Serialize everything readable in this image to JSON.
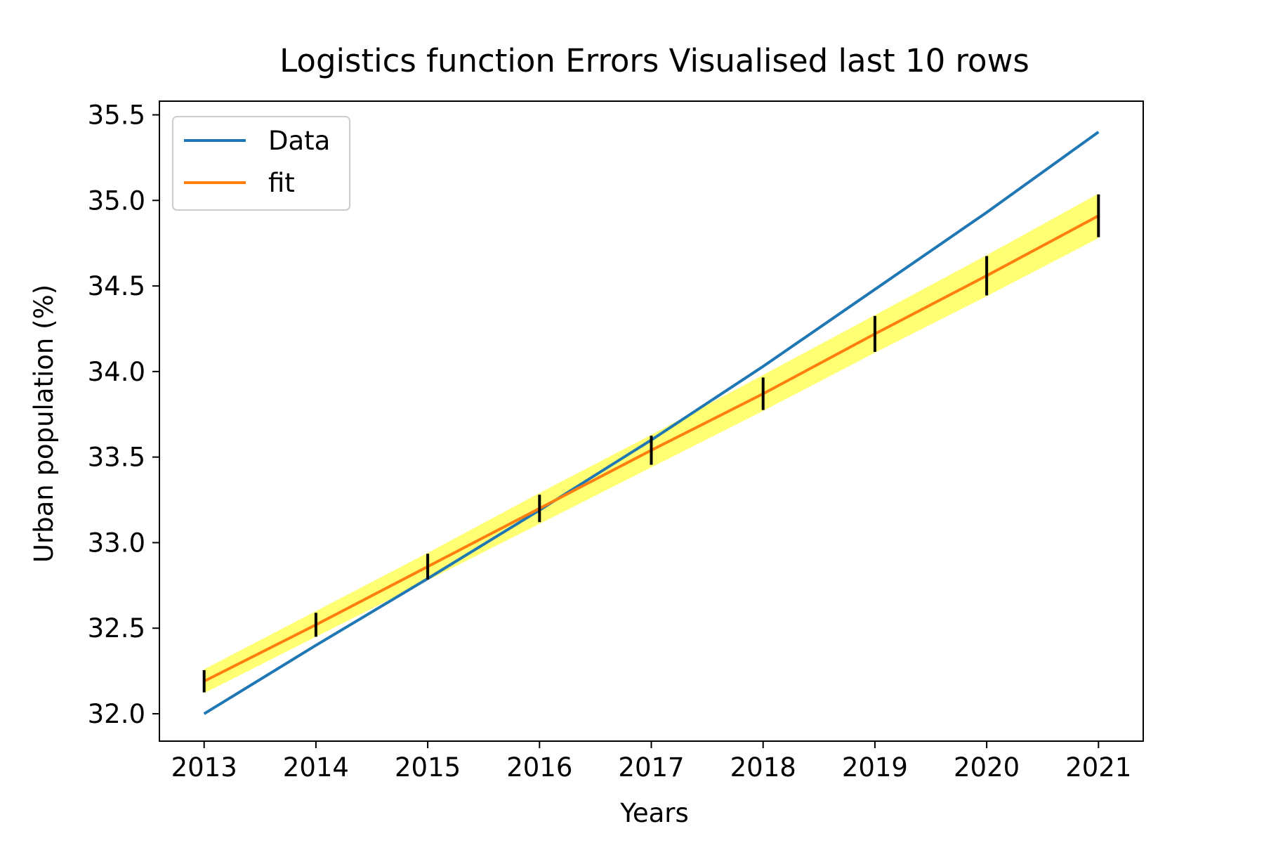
{
  "chart_data": {
    "type": "line",
    "title": "Logistics function  Errors Visualised last 10 rows",
    "xlabel": "Years",
    "ylabel": "Urban population (%)",
    "x": [
      2013,
      2014,
      2015,
      2016,
      2017,
      2018,
      2019,
      2020,
      2021
    ],
    "xlim": [
      2012.6,
      2021.4
    ],
    "ylim": [
      31.84,
      35.58
    ],
    "xticks": [
      2013,
      2014,
      2015,
      2016,
      2017,
      2018,
      2019,
      2020,
      2021
    ],
    "yticks": [
      "32.0",
      "32.5",
      "33.0",
      "33.5",
      "34.0",
      "34.5",
      "35.0",
      "35.5"
    ],
    "series": [
      {
        "name": "Data",
        "color": "#1f77b4",
        "values": [
          32.0,
          32.4,
          32.79,
          33.19,
          33.6,
          34.03,
          34.48,
          34.93,
          35.4
        ]
      },
      {
        "name": "fit",
        "color": "#ff7f0e",
        "values": [
          32.19,
          32.52,
          32.86,
          33.2,
          33.54,
          33.87,
          34.22,
          34.56,
          34.91
        ]
      }
    ],
    "confidence_band": {
      "color": "#ffff00",
      "lower": [
        32.12,
        32.45,
        32.78,
        33.11,
        33.44,
        33.77,
        34.11,
        34.44,
        34.78
      ],
      "upper": [
        32.26,
        32.6,
        32.94,
        33.29,
        33.63,
        33.98,
        34.33,
        34.68,
        35.04
      ]
    },
    "error_bars": {
      "color": "#000000",
      "half_width": [
        0.065,
        0.07,
        0.075,
        0.08,
        0.085,
        0.095,
        0.105,
        0.115,
        0.125
      ]
    },
    "legend": "top-left",
    "grid": false
  }
}
